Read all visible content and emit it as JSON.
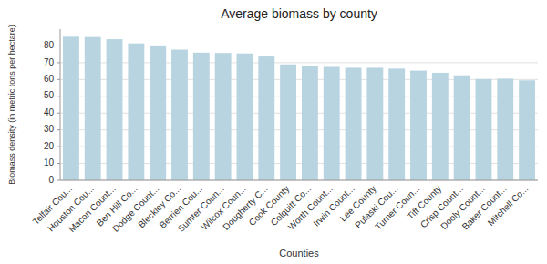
{
  "chart_data": {
    "type": "bar",
    "title": "Average biomass by county",
    "xlabel": "Counties",
    "ylabel": "Biomass density (in metric tons per hectare)",
    "categories": [
      "Telfair Cou...",
      "Houston Cou...",
      "Macon Count...",
      "Ben Hill Co...",
      "Dodge Count...",
      "Bleckley Co...",
      "Berrien Cou...",
      "Sumter Coun...",
      "Wilcox Coun...",
      "Dougherty C...",
      "Cook County",
      "Colquitt Co...",
      "Worth Count...",
      "Irwin Count...",
      "Lee County",
      "Pulaski Cou...",
      "Turner Coun...",
      "Tift County",
      "Crisp Count...",
      "Dooly Count...",
      "Baker Count...",
      "Mitchell Co..."
    ],
    "values": [
      85.5,
      85.3,
      84.0,
      81.5,
      80.3,
      77.8,
      76.0,
      75.8,
      75.5,
      73.7,
      69.0,
      68.0,
      67.5,
      67.0,
      67.0,
      66.5,
      65.3,
      64.0,
      62.5,
      60.3,
      60.5,
      59.5
    ],
    "color": "#b8d4e0",
    "ylim": [
      0,
      90
    ],
    "yticks": [
      0,
      10,
      20,
      30,
      40,
      50,
      60,
      70,
      80
    ],
    "grid": true
  }
}
